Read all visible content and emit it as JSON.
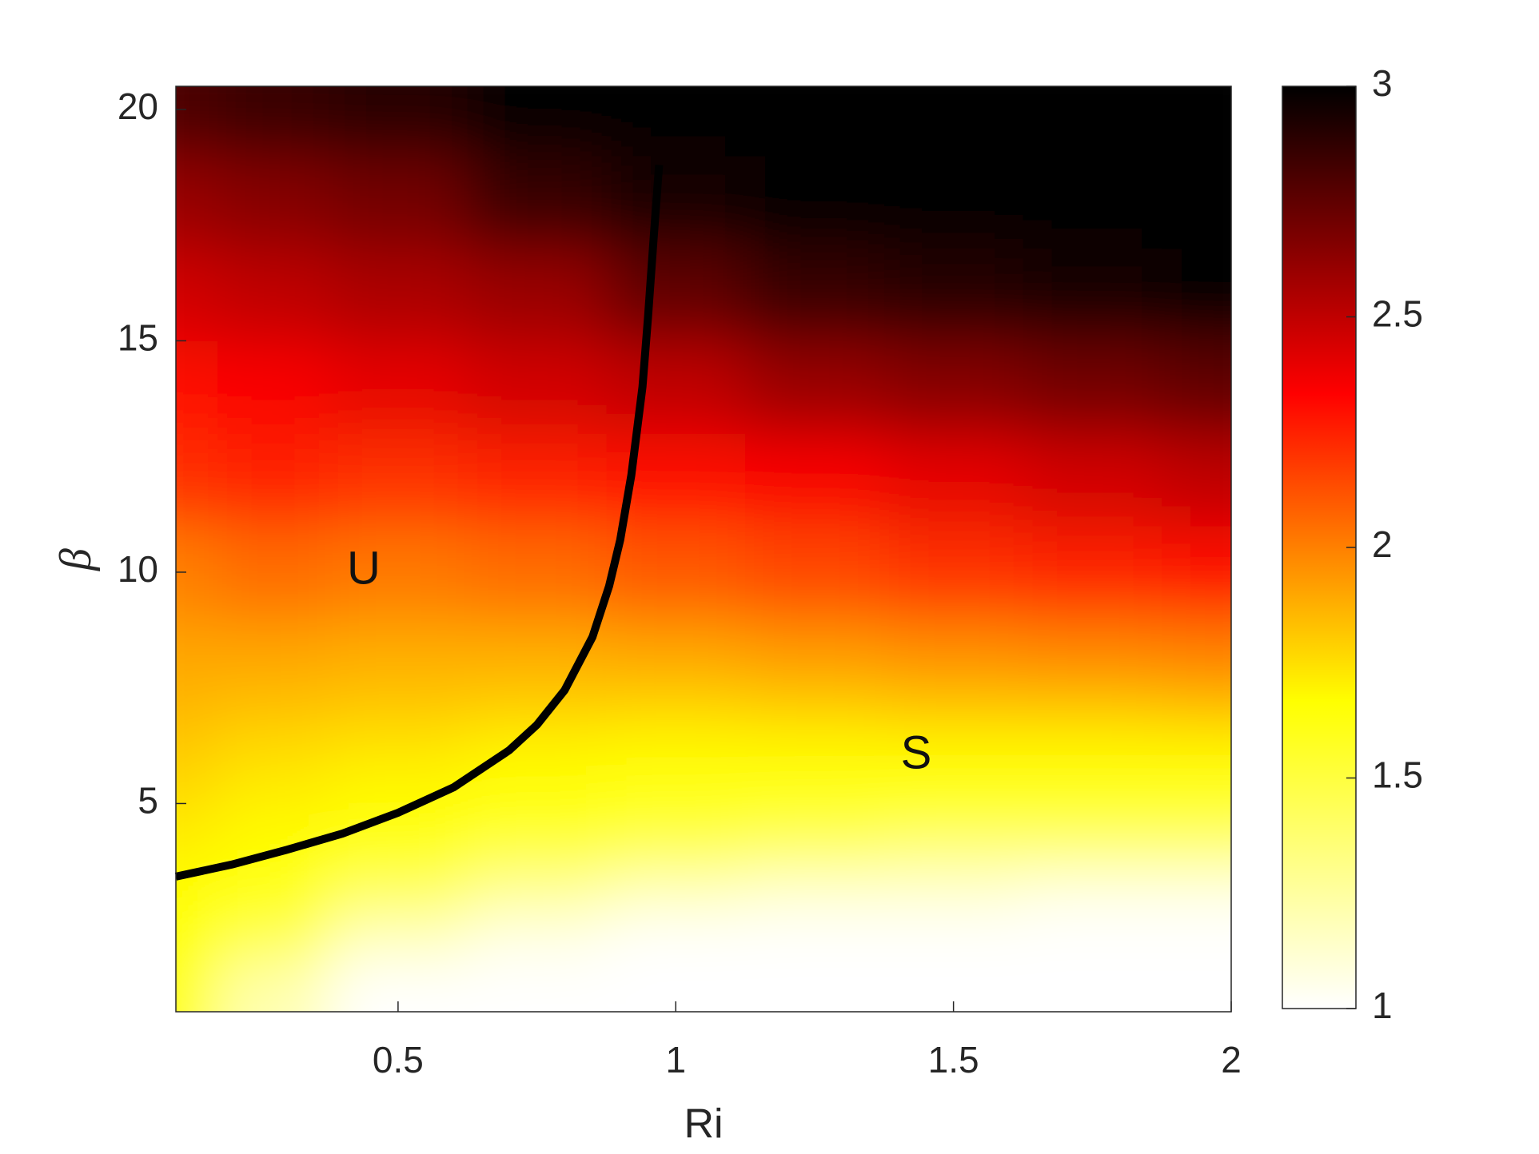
{
  "chart_data": {
    "type": "heatmap",
    "x_label": "Ri",
    "y_label": "β",
    "x": [
      0.1,
      0.25,
      0.5,
      0.75,
      1,
      1.25,
      1.5,
      1.75,
      2
    ],
    "y": [
      1,
      2,
      3,
      4,
      5,
      6,
      7,
      8,
      10,
      12,
      14,
      16,
      18,
      20
    ],
    "z": [
      [
        1.65,
        1.2,
        1.0,
        1.0,
        1.0,
        1.0,
        1.0,
        1.0,
        1.0
      ],
      [
        1.65,
        1.45,
        1.15,
        1.05,
        1.0,
        1.0,
        1.0,
        1.0,
        1.0
      ],
      [
        1.65,
        1.6,
        1.4,
        1.25,
        1.15,
        1.1,
        1.1,
        1.05,
        1.05
      ],
      [
        1.7,
        1.65,
        1.6,
        1.5,
        1.45,
        1.4,
        1.35,
        1.35,
        1.35
      ],
      [
        1.75,
        1.7,
        1.67,
        1.65,
        1.6,
        1.6,
        1.6,
        1.6,
        1.6
      ],
      [
        1.8,
        1.75,
        1.72,
        1.68,
        1.67,
        1.67,
        1.67,
        1.67,
        1.67
      ],
      [
        1.85,
        1.82,
        1.8,
        1.78,
        1.76,
        1.78,
        1.8,
        1.8,
        1.82
      ],
      [
        1.9,
        1.9,
        1.88,
        1.88,
        1.9,
        1.93,
        1.96,
        1.98,
        2.0
      ],
      [
        2.0,
        2.05,
        2.02,
        2.05,
        2.1,
        2.15,
        2.2,
        2.25,
        2.3
      ],
      [
        2.2,
        2.25,
        2.2,
        2.25,
        2.3,
        2.35,
        2.4,
        2.45,
        2.5
      ],
      [
        2.3,
        2.35,
        2.4,
        2.45,
        2.5,
        2.6,
        2.65,
        2.7,
        2.75
      ],
      [
        2.45,
        2.5,
        2.55,
        2.6,
        2.75,
        2.85,
        2.9,
        2.95,
        3.0
      ],
      [
        2.6,
        2.65,
        2.7,
        2.85,
        2.95,
        3.0,
        3.0,
        3.0,
        3.0
      ],
      [
        2.8,
        2.85,
        2.9,
        3.0,
        3.0,
        3.0,
        3.0,
        3.0,
        3.0
      ]
    ],
    "colormap": "hot-reversed",
    "contour": {
      "color": "#000000",
      "x": [
        0.1,
        0.2,
        0.3,
        0.4,
        0.5,
        0.6,
        0.7,
        0.75,
        0.8,
        0.85,
        0.88,
        0.9,
        0.92,
        0.94,
        0.95,
        0.96,
        0.97
      ],
      "y": [
        3.42,
        3.68,
        4.0,
        4.35,
        4.8,
        5.35,
        6.15,
        6.7,
        7.45,
        8.6,
        9.7,
        10.7,
        12.1,
        14,
        15.5,
        17.2,
        18.8
      ]
    },
    "annotations": [
      "U",
      "S"
    ],
    "xlim": [
      0.1,
      2
    ],
    "xticks": [
      0.5,
      1,
      1.5,
      2
    ],
    "ylim": [
      0.5,
      20.5
    ],
    "yticks": [
      5,
      10,
      15,
      20
    ],
    "colorbar": {
      "lim": [
        1,
        3
      ],
      "ticks": [
        1,
        1.5,
        2,
        2.5,
        3
      ]
    }
  }
}
